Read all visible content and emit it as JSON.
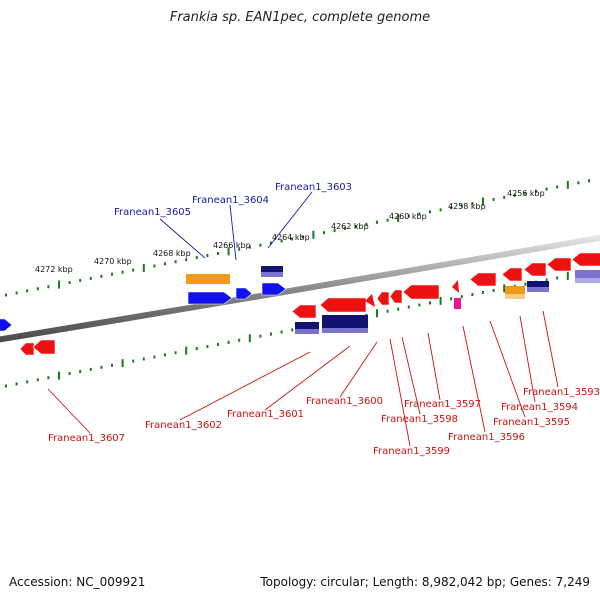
{
  "title": "Frankia sp. EAN1pec, complete genome",
  "footer": {
    "accession": "Accession: NC_009921",
    "summary": "Topology: circular; Length: 8,982,042 bp; Genes: 7,249"
  },
  "colors": {
    "background": "#ffffff",
    "backbone": "#8a8a8a",
    "tick": "#1e7a1e",
    "label_forward": "#1a1aa0",
    "label_reverse": "#cc1111",
    "gene_red": "#ee1111",
    "gene_blue": "#1111ee",
    "gene_orange": "#f39a18",
    "gene_navy": "#121270",
    "gene_lavender": "#7a72cc",
    "gene_magenta": "#ee1199"
  },
  "ruler": {
    "upper_labels": [
      "4272 kbp",
      "4270 kbp",
      "4268 kbp",
      "4266 kbp",
      "4264 kbp",
      "4262 kbp",
      "4260 kbp",
      "4258 kbp",
      "4256 kbp"
    ]
  },
  "gene_labels": {
    "forward": [
      "Franean1_3605",
      "Franean1_3604",
      "Franean1_3603"
    ],
    "reverse": [
      "Franean1_3607",
      "Franean1_3602",
      "Franean1_3601",
      "Franean1_3600",
      "Franean1_3599",
      "Franean1_3598",
      "Franean1_3597",
      "Franean1_3596",
      "Franean1_3595",
      "Franean1_3594",
      "Franean1_3593"
    ]
  }
}
